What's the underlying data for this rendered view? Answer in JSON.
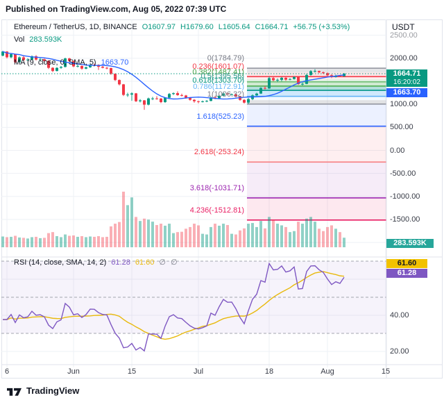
{
  "published_bar": {
    "text": "Published on TradingView.com, Aug 05, 2022 07:39 UTC"
  },
  "legend": {
    "symbol": "Ethereum / TetherUS, 1D, BINANCE",
    "open": "O1607.97",
    "high": "H1679.60",
    "low": "L1605.64",
    "close": "C1664.71",
    "change": "+56.75 (+3.53%)",
    "vol_label": "Vol",
    "vol_value": "283.593K",
    "ma_label": "MA (9, close, 0, SMA, 5)",
    "ma_value": "1663.70",
    "rsi_label": "RSI (14, close, SMA, 14, 2)",
    "rsi_value": "61.28",
    "rsi_ma_value": "61.60",
    "rsi_extra1": "∅",
    "rsi_extra2": "∅"
  },
  "axis": {
    "currency": "USDT",
    "price_ticks": [
      {
        "text": "2500.00",
        "price": 2500,
        "faint": true
      },
      {
        "text": "2000.00",
        "price": 2000,
        "faint": false
      },
      {
        "text": "1000.00",
        "price": 1000,
        "faint": false
      },
      {
        "text": "500.00",
        "price": 500,
        "faint": false
      },
      {
        "text": "0.00",
        "price": 0,
        "faint": false
      },
      {
        "text": "-500.00",
        "price": -500,
        "faint": false
      },
      {
        "text": "-1000.00",
        "price": -1000,
        "faint": false
      },
      {
        "text": "-1500.00",
        "price": -1500,
        "faint": false
      }
    ],
    "time_ticks": [
      {
        "text": "6",
        "day": 1
      },
      {
        "text": "Jun",
        "day": 17
      },
      {
        "text": "15",
        "day": 31
      },
      {
        "text": "Jul",
        "day": 47
      },
      {
        "text": "18",
        "day": 64
      },
      {
        "text": "Aug",
        "day": 78
      },
      {
        "text": "15",
        "day": 92
      }
    ],
    "rsi_ticks": [
      {
        "text": "40.00",
        "value": 40
      },
      {
        "text": "20.00",
        "value": 20
      }
    ]
  },
  "badges": {
    "price": "1664.71",
    "countdown": "16:20:02",
    "ma": "1663.70",
    "volume": "283.593K",
    "rsi_ma": "61.60",
    "rsi": "61.28"
  },
  "footer": {
    "brand": "TradingView"
  },
  "colors": {
    "up": "#089981",
    "down": "#f23645",
    "volume_up": "rgba(8,153,129,0.45)",
    "volume_down": "rgba(242,54,69,0.4)",
    "ma_line": "#2962ff",
    "rsi_line": "#7e57c2",
    "rsi_ma_line": "#e8b90c",
    "grid": "#eef0f5",
    "separator": "#e0e3eb",
    "price_badge_bg": "#089981",
    "ma_badge_bg": "#2962ff",
    "volume_badge_bg": "#26a69a",
    "rsi_badge_bg": "#7e57c2",
    "rsi_ma_badge_bg": "#f2c200"
  },
  "chart_data": {
    "type": "candlestick",
    "title": "Ethereum / TetherUS, 1D, BINANCE",
    "symbol": "ETHUSDT",
    "interval": "1D",
    "exchange": "BINANCE",
    "dates_start": "2022-05-15",
    "open": [
      2057,
      2146,
      2022,
      2090,
      1916,
      2020,
      1961,
      1972,
      2043,
      1972,
      1978,
      1942,
      1793,
      1724,
      1792,
      1812,
      1996,
      1942,
      1823,
      1834,
      1775,
      1804,
      1859,
      1857,
      1815,
      1793,
      1787,
      1664,
      1528,
      1434,
      1205,
      1211,
      1238,
      1067,
      1086,
      993,
      1128,
      1128,
      1125,
      1048,
      1143,
      1225,
      1243,
      1200,
      1192,
      1144,
      1098,
      1067,
      1056,
      1064,
      1074,
      1151,
      1132,
      1187,
      1237,
      1216,
      1217,
      1168,
      1096,
      1037,
      1114,
      1194,
      1233,
      1355,
      1344,
      1570,
      1524,
      1531,
      1576,
      1536,
      1550,
      1595,
      1440,
      1444,
      1638,
      1720,
      1723,
      1695,
      1677,
      1632,
      1592,
      1619,
      1607.97
    ],
    "high": [
      2160,
      2155,
      2105,
      2098,
      2040,
      2058,
      2000,
      2062,
      2068,
      2003,
      1992,
      1958,
      1807,
      1806,
      1832,
      2012,
      2010,
      1950,
      1862,
      1843,
      1820,
      1872,
      1886,
      1870,
      1836,
      1812,
      1794,
      1672,
      1541,
      1442,
      1252,
      1261,
      1246,
      1112,
      1094,
      1147,
      1162,
      1176,
      1136,
      1152,
      1247,
      1258,
      1282,
      1232,
      1205,
      1157,
      1112,
      1078,
      1082,
      1092,
      1162,
      1176,
      1202,
      1272,
      1262,
      1237,
      1231,
      1182,
      1112,
      1141,
      1216,
      1251,
      1372,
      1397,
      1603,
      1601,
      1562,
      1591,
      1587,
      1566,
      1607,
      1602,
      1472,
      1662,
      1742,
      1762,
      1731,
      1712,
      1691,
      1652,
      1646,
      1637,
      1679.6
    ],
    "low": [
      2041,
      1996,
      2001,
      1892,
      1901,
      1936,
      1941,
      1956,
      1951,
      1936,
      1906,
      1766,
      1701,
      1716,
      1771,
      1801,
      1921,
      1806,
      1801,
      1751,
      1761,
      1791,
      1831,
      1746,
      1781,
      1761,
      1641,
      1506,
      1411,
      1181,
      1162,
      1076,
      1051,
      1041,
      881,
      976,
      1091,
      1101,
      1026,
      1031,
      1126,
      1201,
      1186,
      1171,
      1121,
      1076,
      1036,
      1021,
      1041,
      1046,
      1066,
      1111,
      1116,
      1171,
      1191,
      1196,
      1151,
      1076,
      1016,
      1006,
      1091,
      1181,
      1226,
      1321,
      1336,
      1501,
      1481,
      1501,
      1511,
      1521,
      1536,
      1421,
      1411,
      1436,
      1621,
      1691,
      1676,
      1661,
      1606,
      1571,
      1581,
      1591,
      1605.64
    ],
    "close": [
      2146,
      2022,
      2090,
      1916,
      2020,
      1961,
      1972,
      2043,
      1972,
      1978,
      1942,
      1793,
      1724,
      1792,
      1812,
      1996,
      1942,
      1823,
      1834,
      1775,
      1804,
      1859,
      1857,
      1815,
      1793,
      1787,
      1664,
      1528,
      1434,
      1205,
      1211,
      1238,
      1067,
      1086,
      993,
      1128,
      1128,
      1125,
      1048,
      1143,
      1225,
      1243,
      1200,
      1192,
      1144,
      1098,
      1067,
      1056,
      1064,
      1074,
      1151,
      1132,
      1187,
      1237,
      1216,
      1217,
      1168,
      1096,
      1037,
      1114,
      1194,
      1233,
      1355,
      1344,
      1570,
      1524,
      1531,
      1576,
      1536,
      1550,
      1595,
      1440,
      1444,
      1638,
      1720,
      1723,
      1695,
      1677,
      1632,
      1592,
      1619,
      1608,
      1664.71
    ],
    "volume_k": [
      320,
      300,
      310,
      340,
      290,
      280,
      260,
      300,
      310,
      270,
      280,
      420,
      450,
      330,
      300,
      380,
      340,
      350,
      310,
      330,
      300,
      320,
      310,
      330,
      300,
      310,
      620,
      700,
      750,
      1650,
      1250,
      1480,
      900,
      780,
      850,
      820,
      760,
      660,
      700,
      640,
      700,
      420,
      450,
      460,
      550,
      600,
      700,
      650,
      400,
      380,
      600,
      700,
      640,
      700,
      660,
      400,
      380,
      500,
      560,
      700,
      720,
      600,
      780,
      560,
      900,
      820,
      700,
      650,
      600,
      450,
      480,
      760,
      700,
      850,
      900,
      760,
      550,
      480,
      600,
      650,
      550,
      450,
      283.593
    ],
    "last_bar": {
      "open": 1607.97,
      "high": 1679.6,
      "low": 1605.64,
      "close": 1664.71,
      "change": 56.75,
      "change_pct": 3.53,
      "volume_k": 283.593
    },
    "current_price": 1664.71,
    "overlays": {
      "ma": {
        "type": "SMA",
        "length": 9,
        "source": "close",
        "offset": 0,
        "smoothing": "SMA 5",
        "value": 1663.7
      },
      "fib_retracement": {
        "start_index": 59,
        "levels": [
          {
            "label": "0(1784.79)",
            "level": 0,
            "price": 1784.79,
            "color": "#9598a1",
            "label_color": "#787b86"
          },
          {
            "label": "0.236(1601.07)",
            "level": 0.236,
            "price": 1601.07,
            "color": "#f23645",
            "label_color": "#f23645"
          },
          {
            "label": "0.382(1487.41)",
            "level": 0.382,
            "price": 1487.41,
            "color": "#66bb6a",
            "label_color": "#3f9f45"
          },
          {
            "label": "0.5(1395.56)",
            "level": 0.5,
            "price": 1395.56,
            "color": "#4caf50",
            "label_color": "#2e9688"
          },
          {
            "label": "0.618(1303.70)",
            "level": 0.618,
            "price": 1303.7,
            "color": "#009688",
            "label_color": "#089981"
          },
          {
            "label": "0.786(1172.91)",
            "level": 0.786,
            "price": 1172.91,
            "color": "#64b5f6",
            "label_color": "#64b5f6"
          },
          {
            "label": "1(1006.32)",
            "level": 1,
            "price": 1006.32,
            "color": "#9598a1",
            "label_color": "#787b86"
          },
          {
            "label": "1.618(525.23)",
            "level": 1.618,
            "price": 525.23,
            "color": "#2962ff",
            "label_color": "#2962ff"
          },
          {
            "label": "2.618(-253.24)",
            "level": 2.618,
            "price": -253.24,
            "color": "#f77c80",
            "label_color": "#f23645"
          },
          {
            "label": "3.618(-1031.71)",
            "level": 3.618,
            "price": -1031.71,
            "color": "#9c27b0",
            "label_color": "#9c27b0"
          },
          {
            "label": "4.236(-1512.81)",
            "level": 4.236,
            "price": -1512.81,
            "color": "#e91e63",
            "label_color": "#e91e63"
          }
        ],
        "zones": [
          {
            "top": 1784.79,
            "bottom": 1692.93,
            "color": "#787b86",
            "alpha": 0.2
          },
          {
            "top": 1692.93,
            "bottom": 1601.07,
            "color": "#f23645",
            "alpha": 0.12
          },
          {
            "top": 1601.07,
            "bottom": 1544.24,
            "color": "#f23645",
            "alpha": 0.08
          },
          {
            "top": 1544.24,
            "bottom": 1487.41,
            "color": "#4caf50",
            "alpha": 0.16
          },
          {
            "top": 1487.41,
            "bottom": 1395.56,
            "color": "#4caf50",
            "alpha": 0.26
          },
          {
            "top": 1395.56,
            "bottom": 1303.7,
            "color": "#009688",
            "alpha": 0.3
          },
          {
            "top": 1303.7,
            "bottom": 1172.91,
            "color": "#64b5f6",
            "alpha": 0.3
          },
          {
            "top": 1172.91,
            "bottom": 1089.62,
            "color": "#64b5f6",
            "alpha": 0.08
          },
          {
            "top": 1089.62,
            "bottom": 1006.32,
            "color": "#787b86",
            "alpha": 0.22
          },
          {
            "top": 1006.32,
            "bottom": 525.23,
            "color": "#2962ff",
            "alpha": 0.09
          },
          {
            "top": 525.23,
            "bottom": -253.24,
            "color": "#f23645",
            "alpha": 0.08
          },
          {
            "top": -253.24,
            "bottom": -1031.71,
            "color": "#9c27b0",
            "alpha": 0.09
          },
          {
            "top": -1031.71,
            "bottom": -1512.81,
            "color": "#e91e63",
            "alpha": 0.1
          }
        ]
      }
    },
    "indicators": {
      "rsi": {
        "length": 14,
        "source": "close",
        "ma_type": "SMA",
        "ma_length": 14,
        "value": 61.28,
        "ma_value": 61.6,
        "overbought": 70,
        "midline": 50,
        "oversold": 30
      }
    },
    "ylim_price": [
      -2000,
      2500
    ],
    "ylim_rsi": [
      13,
      72
    ],
    "grid": true
  }
}
